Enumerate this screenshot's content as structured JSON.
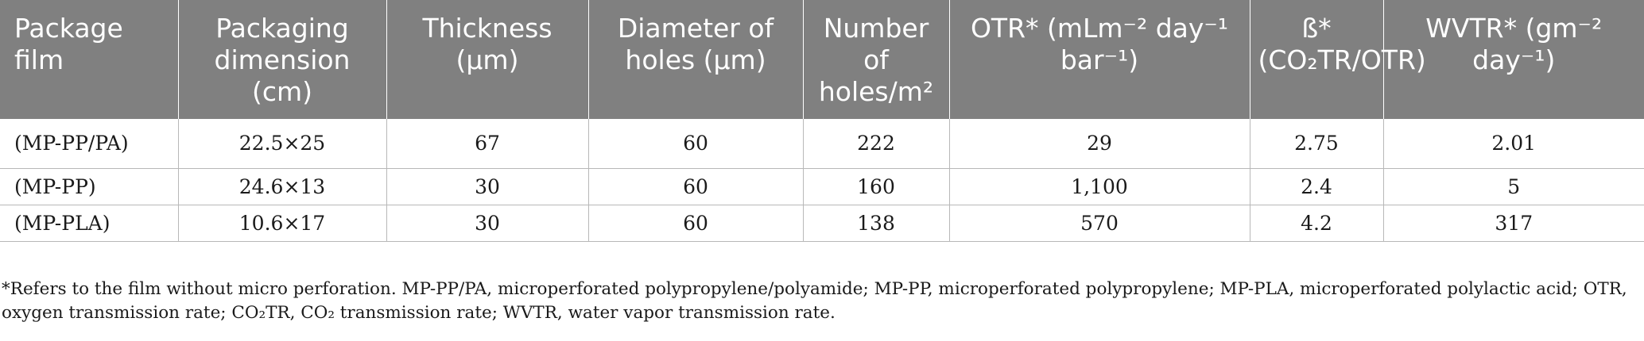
{
  "table": {
    "headers": [
      {
        "name": "col-package-film",
        "text": "Package film"
      },
      {
        "name": "col-packaging-dimension",
        "text": "Packaging dimension (cm)"
      },
      {
        "name": "col-thickness",
        "text": "Thickness (μm)"
      },
      {
        "name": "col-diameter-of-holes",
        "text": "Diameter of holes (μm)"
      },
      {
        "name": "col-number-of-holes",
        "text": "Number of holes/m²"
      },
      {
        "name": "col-otr",
        "text": "OTR* (mLm⁻² day⁻¹ bar⁻¹)"
      },
      {
        "name": "col-beta",
        "text": "ß* (CO₂TR/OTR)"
      },
      {
        "name": "col-wvtr",
        "text": "WVTR* (gm⁻² day⁻¹)"
      }
    ],
    "rows": [
      [
        "(MP-PP/PA)",
        "22.5×25",
        "67",
        "60",
        "222",
        "29",
        "2.75",
        "2.01"
      ],
      [
        "(MP-PP)",
        "24.6×13",
        "30",
        "60",
        "160",
        "1,100",
        "2.4",
        "5"
      ],
      [
        "(MP-PLA)",
        "10.6×17",
        "30",
        "60",
        "138",
        "570",
        "4.2",
        "317"
      ]
    ]
  },
  "footnote": "*Refers to the film without micro perforation. MP-PP/PA, microperforated polypropylene/polyamide; MP-PP, microperforated polypropylene; MP-PLA, microperforated polylactic acid; OTR, oxygen transmission rate; CO₂TR, CO₂ transmission rate; WVTR, water vapor transmission rate."
}
